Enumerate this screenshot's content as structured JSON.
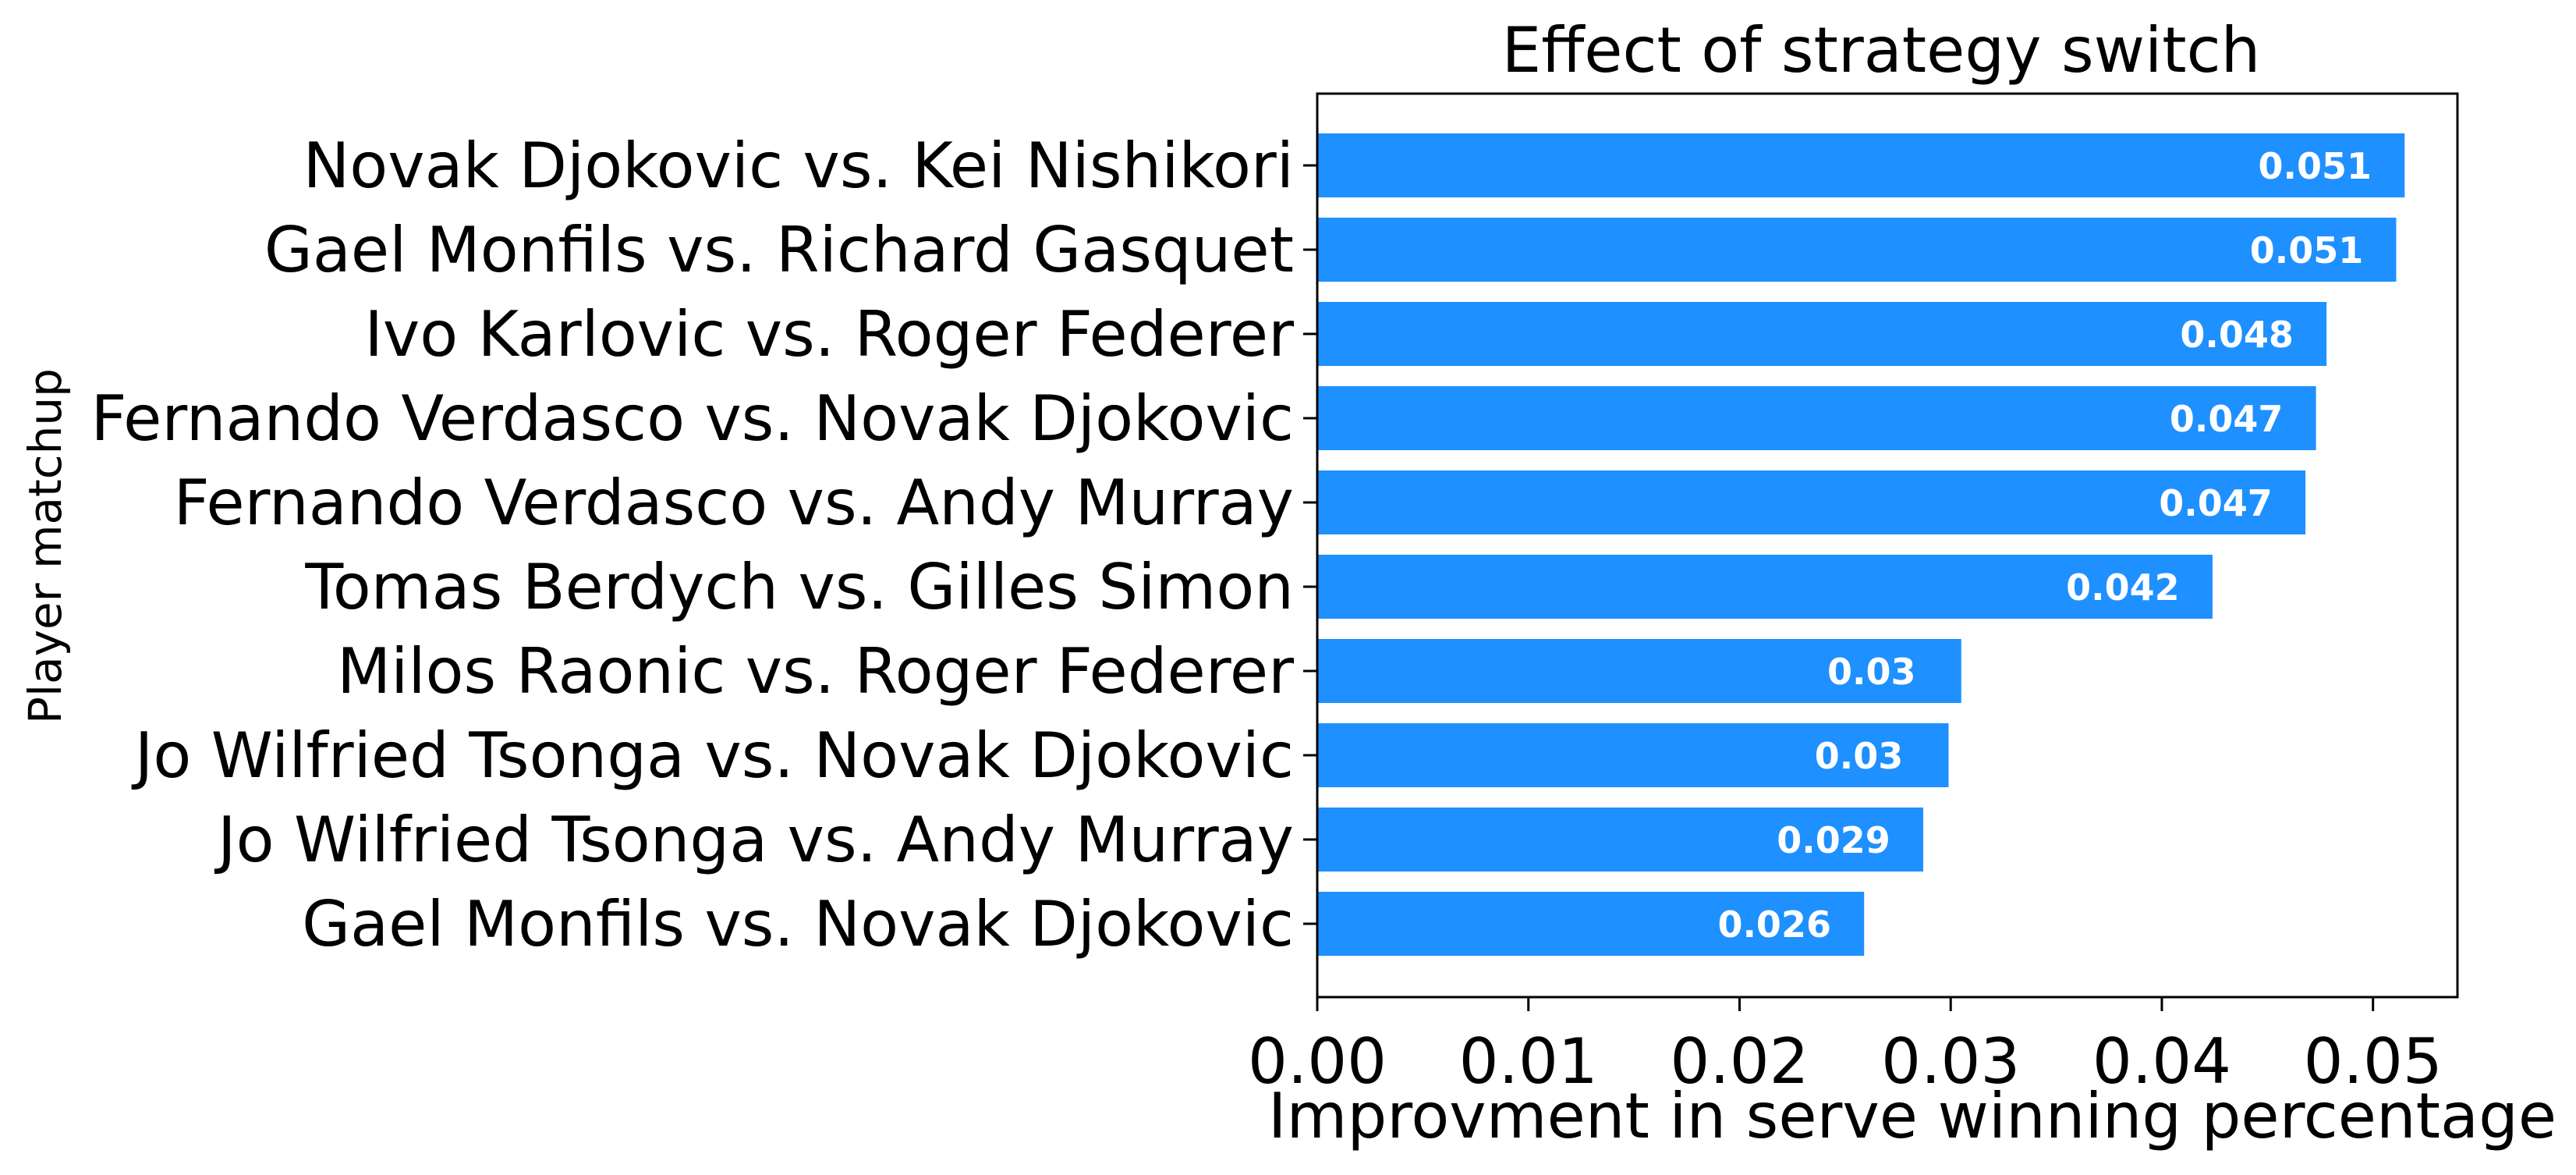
{
  "chart_data": {
    "type": "bar",
    "orientation": "horizontal",
    "title": "Effect of strategy switch",
    "xlabel": "Improvment in serve winning percentage",
    "ylabel": "Player matchup",
    "xlim": [
      0,
      0.054
    ],
    "xticks": [
      0.0,
      0.01,
      0.02,
      0.03,
      0.04,
      0.05
    ],
    "xtick_labels": [
      "0.00",
      "0.01",
      "0.02",
      "0.03",
      "0.04",
      "0.05"
    ],
    "grid": false,
    "bar_color": "#1E90FF",
    "label_color": "#FFFFFF",
    "categories": [
      "Novak Djokovic vs. Kei Nishikori",
      "Gael Monfils vs. Richard Gasquet",
      "Ivo Karlovic vs. Roger Federer",
      "Fernando Verdasco vs. Novak Djokovic",
      "Fernando Verdasco vs. Andy Murray",
      "Tomas Berdych vs. Gilles Simon",
      "Milos Raonic vs. Roger Federer",
      "Jo Wilfried Tsonga vs. Novak Djokovic",
      "Jo Wilfried Tsonga vs. Andy Murray",
      "Gael Monfils vs. Novak Djokovic"
    ],
    "values": [
      0.0515,
      0.0511,
      0.0478,
      0.0473,
      0.0468,
      0.0424,
      0.0305,
      0.0299,
      0.0287,
      0.0259
    ],
    "data_labels": [
      "0.051",
      "0.051",
      "0.048",
      "0.047",
      "0.047",
      "0.042",
      "0.03",
      "0.03",
      "0.029",
      "0.026"
    ]
  }
}
